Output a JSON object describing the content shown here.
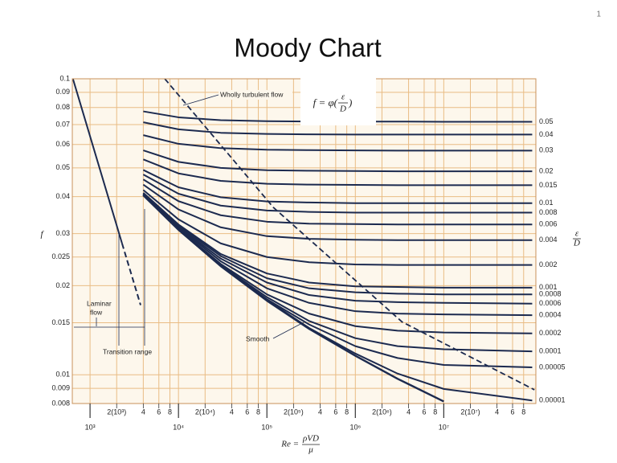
{
  "page_number": "1",
  "chart_data": {
    "type": "line",
    "title": "Moody Chart",
    "log_x": true,
    "log_y": true,
    "grid": true,
    "xlim": [
      630,
      110000000
    ],
    "ylim": [
      0.008,
      0.1
    ],
    "xticks": [
      {
        "value": 1000,
        "label": "10³"
      },
      {
        "value": 2000,
        "label": "2(10³)"
      },
      {
        "value": 4000,
        "label": "4"
      },
      {
        "value": 6000,
        "label": "6"
      },
      {
        "value": 8000,
        "label": "8"
      },
      {
        "value": 10000,
        "label": "10⁴"
      },
      {
        "value": 20000,
        "label": "2(10⁴)"
      },
      {
        "value": 40000,
        "label": "4"
      },
      {
        "value": 60000,
        "label": "6"
      },
      {
        "value": 80000,
        "label": "8"
      },
      {
        "value": 100000,
        "label": "10⁵"
      },
      {
        "value": 200000,
        "label": "2(10⁵)"
      },
      {
        "value": 400000,
        "label": "4"
      },
      {
        "value": 600000,
        "label": "6"
      },
      {
        "value": 800000,
        "label": "8"
      },
      {
        "value": 1000000,
        "label": "10⁶"
      },
      {
        "value": 2000000,
        "label": "2(10⁶)"
      },
      {
        "value": 4000000,
        "label": "4"
      },
      {
        "value": 6000000,
        "label": "6"
      },
      {
        "value": 8000000,
        "label": "8"
      },
      {
        "value": 10000000,
        "label": "10⁷"
      },
      {
        "value": 20000000,
        "label": "2(10⁷)"
      },
      {
        "value": 40000000,
        "label": "4"
      },
      {
        "value": 60000000,
        "label": "6"
      },
      {
        "value": 80000000,
        "label": "8"
      }
    ],
    "yticks": [
      0.1,
      0.09,
      0.08,
      0.07,
      0.06,
      0.05,
      0.04,
      0.03,
      0.025,
      0.02,
      0.015,
      0.01,
      0.009,
      0.008
    ],
    "x_label": {
      "lhs": "Re =",
      "num": "ρVD",
      "den": "μ"
    },
    "y_label": "f",
    "y2_label": {
      "num": "ε",
      "den": "D"
    },
    "formula": {
      "lhs": "f = φ(",
      "num": "ε",
      "den": "D",
      "rhs": ")"
    },
    "line_color": "#1c2a4f",
    "grid_color": "#e9bc84",
    "x": [
      4000,
      10000,
      30000,
      100000,
      300000,
      1000000,
      3000000,
      10000000,
      100000000
    ],
    "series": [
      {
        "name": "0.05",
        "values": [
          0.0776,
          0.0741,
          0.0725,
          0.0719,
          0.0717,
          0.0717,
          0.0717,
          0.0716,
          0.0716
        ]
      },
      {
        "name": "0.04",
        "values": [
          0.0713,
          0.0675,
          0.0657,
          0.0651,
          0.0649,
          0.0648,
          0.0648,
          0.0648,
          0.0648
        ]
      },
      {
        "name": "0.03",
        "values": [
          0.0645,
          0.0603,
          0.0583,
          0.0576,
          0.0574,
          0.0573,
          0.0572,
          0.0572,
          0.0572
        ]
      },
      {
        "name": "0.02",
        "values": [
          0.0573,
          0.0524,
          0.05,
          0.0491,
          0.0489,
          0.0488,
          0.0487,
          0.0487,
          0.0487
        ]
      },
      {
        "name": "0.015",
        "values": [
          0.0534,
          0.0479,
          0.0452,
          0.0442,
          0.0439,
          0.0438,
          0.0437,
          0.0437,
          0.0437
        ]
      },
      {
        "name": "0.01",
        "values": [
          0.0492,
          0.043,
          0.0398,
          0.0385,
          0.0382,
          0.038,
          0.038,
          0.038,
          0.038
        ]
      },
      {
        "name": "0.008",
        "values": [
          0.0475,
          0.0409,
          0.0373,
          0.0359,
          0.0355,
          0.0353,
          0.0353,
          0.0353,
          0.0353
        ]
      },
      {
        "name": "0.006",
        "values": [
          0.0457,
          0.0386,
          0.0346,
          0.0329,
          0.0324,
          0.0323,
          0.0322,
          0.0322,
          0.0322
        ]
      },
      {
        "name": "0.004",
        "values": [
          0.0439,
          0.0362,
          0.0315,
          0.0294,
          0.0288,
          0.0286,
          0.0285,
          0.0285,
          0.0285
        ]
      },
      {
        "name": "0.002",
        "values": [
          0.0421,
          0.0335,
          0.0278,
          0.025,
          0.024,
          0.0236,
          0.0235,
          0.0235,
          0.0235
        ]
      },
      {
        "name": "0.001",
        "values": [
          0.0412,
          0.0322,
          0.0256,
          0.022,
          0.0205,
          0.0199,
          0.0198,
          0.0197,
          0.0197
        ]
      },
      {
        "name": "0.0008",
        "values": [
          0.041,
          0.0319,
          0.0252,
          0.0212,
          0.0196,
          0.019,
          0.0188,
          0.0187,
          0.0187
        ]
      },
      {
        "name": "0.0006",
        "values": [
          0.0409,
          0.0316,
          0.0247,
          0.0205,
          0.0186,
          0.0178,
          0.0176,
          0.0175,
          0.0174
        ]
      },
      {
        "name": "0.0004",
        "values": [
          0.0407,
          0.0314,
          0.0242,
          0.0196,
          0.0175,
          0.0164,
          0.0161,
          0.016,
          0.0159
        ]
      },
      {
        "name": "0.0002",
        "values": [
          0.0406,
          0.0311,
          0.0237,
          0.0187,
          0.0161,
          0.0146,
          0.0141,
          0.0139,
          0.0138
        ]
      },
      {
        "name": "0.0001",
        "values": [
          0.0405,
          0.031,
          0.0235,
          0.0183,
          0.0152,
          0.0133,
          0.0125,
          0.0122,
          0.012
        ]
      },
      {
        "name": "0.00005",
        "values": [
          0.0405,
          0.0309,
          0.0234,
          0.018,
          0.0148,
          0.0125,
          0.0114,
          0.0108,
          0.0106
        ]
      },
      {
        "name": "0.00001",
        "values": [
          0.0405,
          0.0309,
          0.0233,
          0.0179,
          0.0144,
          0.0118,
          0.0101,
          0.00896,
          0.00819
        ]
      }
    ],
    "smooth": {
      "name": "Smooth",
      "values": [
        0.0404,
        0.0309,
        0.0233,
        0.0178,
        0.0143,
        0.0116,
        0.0097,
        0.00813,
        null
      ]
    },
    "wholly_turbulent": {
      "name": "Wholly turbulent flow",
      "x": [
        7000,
        118000,
        3370000,
        106000000
      ],
      "values": [
        0.1,
        0.0368,
        0.0151,
        0.0089
      ]
    },
    "laminar": {
      "name_lines": [
        "Laminar",
        "flow"
      ],
      "x": [
        640,
        2300,
        3730
      ],
      "values": [
        0.1,
        0.0278,
        0.0172
      ]
    },
    "transition_label": "Transition range"
  }
}
